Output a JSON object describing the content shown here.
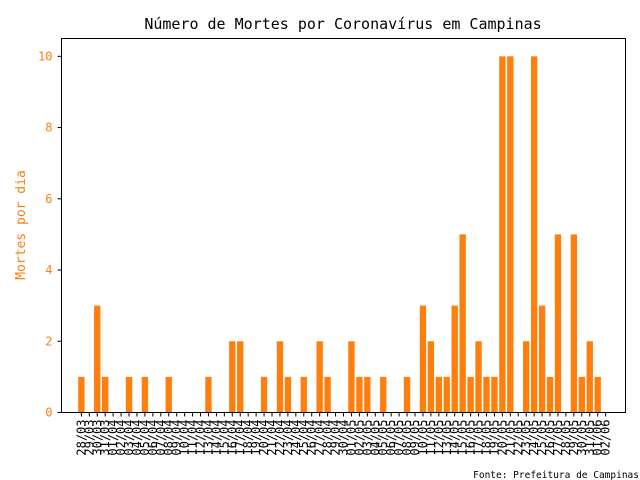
{
  "chart_data": {
    "type": "bar",
    "title": "Número de Mortes por Coronavírus em Campinas",
    "xlabel": "",
    "ylabel": "Mortes por dia",
    "source": "Fonte: Prefeitura de Campinas",
    "ylim": [
      0,
      10.5
    ],
    "yticks": [
      0,
      2,
      4,
      6,
      8,
      10
    ],
    "grid": false,
    "legend": "none",
    "colors": {
      "bar": "#ff7f0e",
      "accent": "#ff7f0e",
      "text": "#000000"
    },
    "categories": [
      "28/03",
      "29/03",
      "30/03",
      "31/03",
      "01/04",
      "02/04",
      "03/04",
      "04/04",
      "05/04",
      "06/04",
      "07/04",
      "08/04",
      "09/04",
      "10/04",
      "11/04",
      "12/04",
      "13/04",
      "14/04",
      "15/04",
      "16/04",
      "17/04",
      "18/04",
      "19/04",
      "20/04",
      "21/04",
      "22/04",
      "23/04",
      "24/04",
      "25/04",
      "26/04",
      "27/04",
      "28/04",
      "29/04",
      "30/04",
      "01/05",
      "02/05",
      "03/05",
      "04/05",
      "05/05",
      "06/05",
      "07/05",
      "08/05",
      "09/05",
      "10/05",
      "11/05",
      "12/05",
      "13/05",
      "14/05",
      "15/05",
      "16/05",
      "17/05",
      "18/05",
      "19/05",
      "20/05",
      "21/05",
      "22/05",
      "23/05",
      "24/05",
      "25/05",
      "26/05",
      "27/05",
      "28/05",
      "29/05",
      "30/05",
      "31/05",
      "01/06",
      "02/06"
    ],
    "values": [
      1,
      0,
      3,
      1,
      0,
      0,
      1,
      0,
      1,
      0,
      0,
      1,
      0,
      0,
      0,
      0,
      1,
      0,
      0,
      2,
      2,
      0,
      0,
      1,
      0,
      2,
      1,
      0,
      1,
      0,
      2,
      1,
      0,
      0,
      2,
      1,
      1,
      0,
      1,
      0,
      0,
      1,
      0,
      3,
      2,
      1,
      1,
      3,
      5,
      1,
      2,
      1,
      1,
      10,
      10,
      0,
      2,
      10,
      3,
      1,
      5,
      0,
      5,
      1,
      2,
      1,
      0
    ]
  }
}
